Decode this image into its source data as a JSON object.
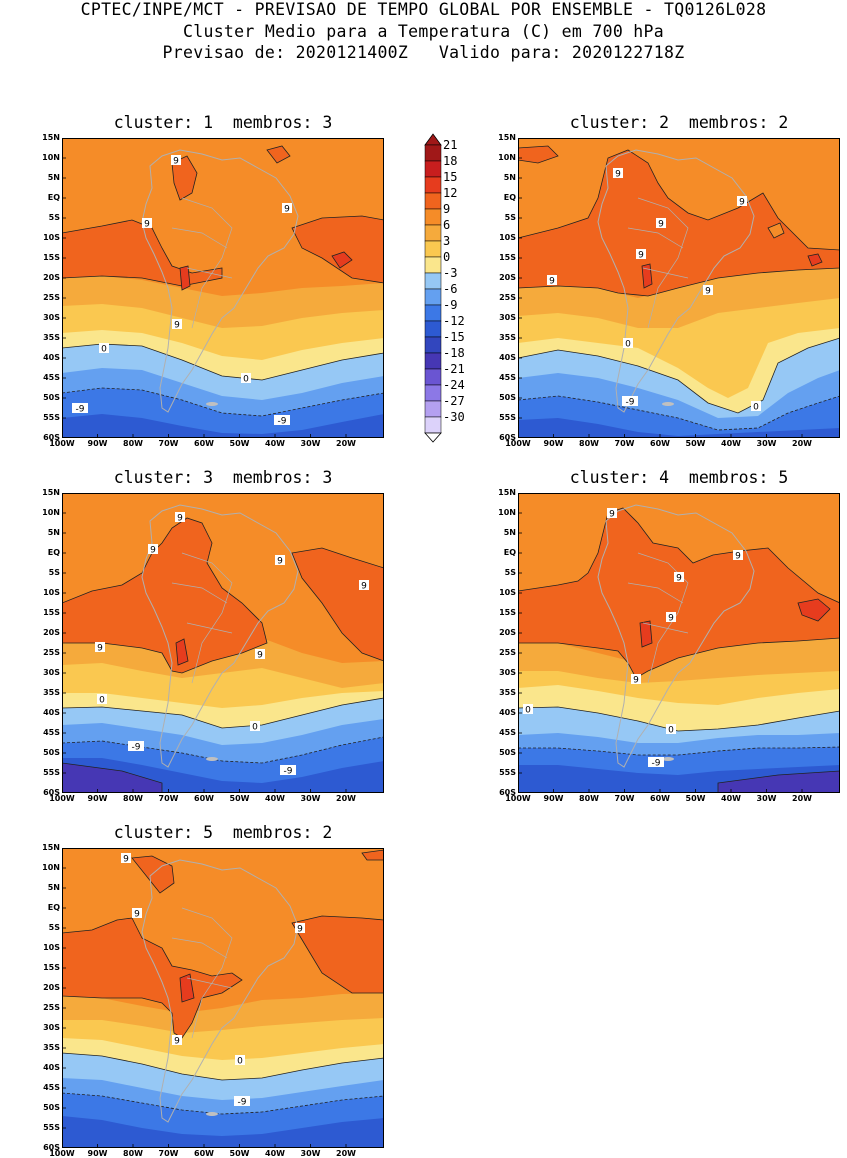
{
  "header": {
    "line1": "CPTEC/INPE/MCT - PREVISAO DE TEMPO GLOBAL POR ENSEMBLE - TQ0126L028",
    "line2": "Cluster Medio para a Temperatura (C) em 700 hPa",
    "line3": "Previsao de: 2020121400Z   Valido para: 2020122718Z"
  },
  "panels": [
    {
      "title": "cluster: 1  membros: 3"
    },
    {
      "title": "cluster: 2  membros: 2"
    },
    {
      "title": "cluster: 3  membros: 3"
    },
    {
      "title": "cluster: 4  membros: 5"
    },
    {
      "title": "cluster: 5  membros: 2"
    }
  ],
  "lat_labels": [
    "15N",
    "10N",
    "5N",
    "EQ",
    "5S",
    "10S",
    "15S",
    "20S",
    "25S",
    "30S",
    "35S",
    "40S",
    "45S",
    "50S",
    "55S",
    "60S"
  ],
  "lon_labels": [
    "100W",
    "90W",
    "80W",
    "70W",
    "60W",
    "50W",
    "40W",
    "30W",
    "20W"
  ],
  "colorbar": {
    "labels": [
      "21",
      "18",
      "15",
      "12",
      "9",
      "6",
      "3",
      "0",
      "-3",
      "-6",
      "-9",
      "-12",
      "-15",
      "-18",
      "-21",
      "-24",
      "-27",
      "-30"
    ],
    "colors": [
      "#a01818",
      "#c81e1e",
      "#e63c1e",
      "#f0641e",
      "#f58c28",
      "#f5aa3c",
      "#fac850",
      "#fae68c",
      "#96c8f5",
      "#64a0f0",
      "#3c78e6",
      "#2d5ad2",
      "#3246be",
      "#4637b4",
      "#6a55d2",
      "#8c78e6",
      "#b4a0f0",
      "#dcd2fa"
    ]
  },
  "contour_labels": {
    "nine": "9",
    "zero": "0",
    "minus_nine": "-9"
  }
}
